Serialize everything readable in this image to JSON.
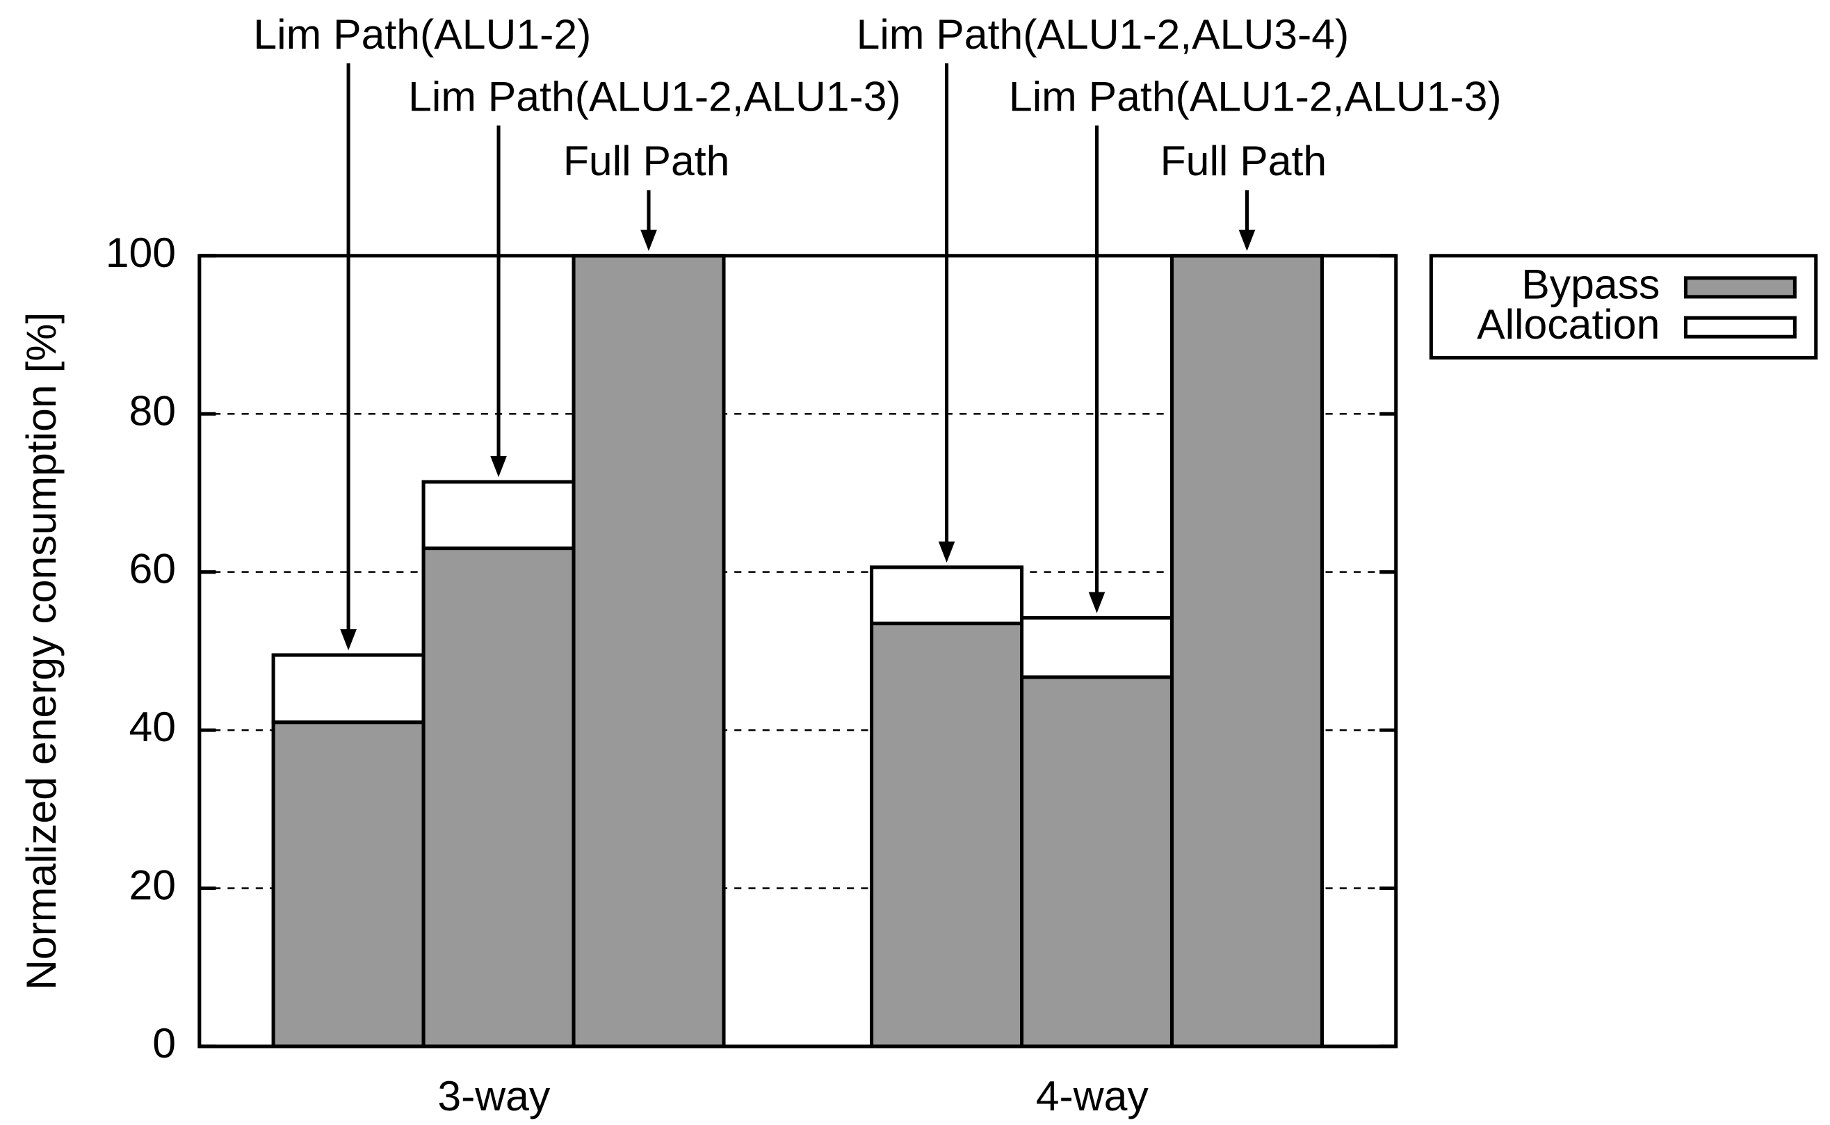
{
  "chart_data": {
    "type": "stacked_bar",
    "ylabel": "Normalized energy consumption [%]",
    "categories": [
      "3-way",
      "4-way"
    ],
    "annotations": [
      [
        "Lim Path(ALU1-2)",
        "Lim Path(ALU1-2,ALU1-3)",
        "Full Path"
      ],
      [
        "Lim Path(ALU1-2,ALU3-4)",
        "Lim Path(ALU1-2,ALU1-3)",
        "Full Path"
      ]
    ],
    "series": [
      {
        "name": "Bypass",
        "color": "#999999",
        "values": [
          [
            41,
            63,
            100
          ],
          [
            53.5,
            46.7,
            100
          ]
        ]
      },
      {
        "name": "Allocation",
        "color": "#ffffff",
        "values": [
          [
            8.5,
            8.4,
            0
          ],
          [
            7.1,
            7.5,
            0
          ]
        ]
      }
    ],
    "ylim": [
      0,
      100
    ],
    "yticks": [
      0,
      20,
      40,
      60,
      80,
      100
    ],
    "grid": true,
    "legend": "outside-right"
  }
}
